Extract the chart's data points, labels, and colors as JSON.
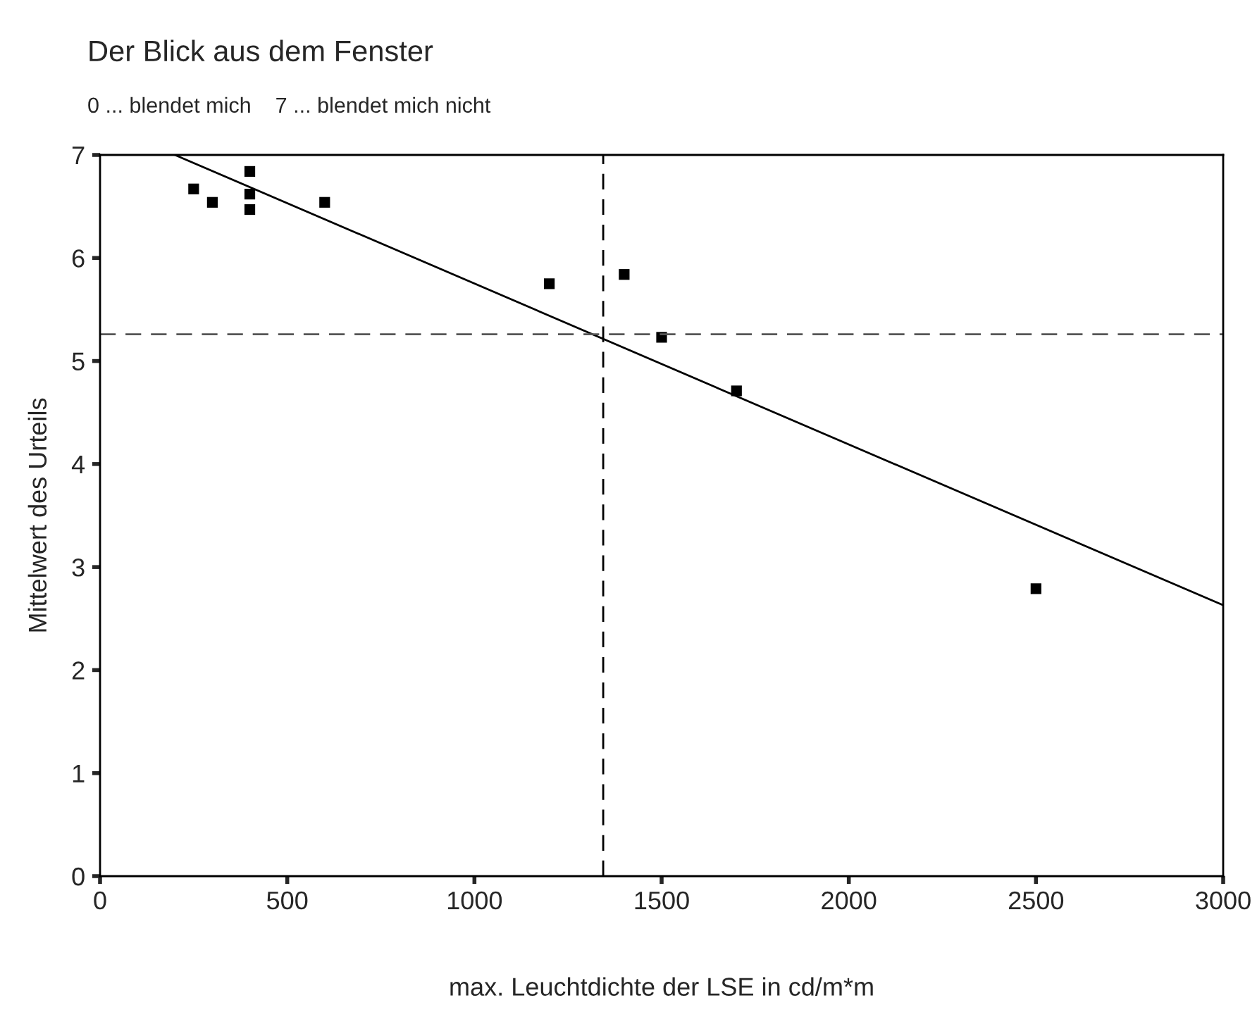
{
  "chart_data": {
    "type": "scatter",
    "title": "Der Blick aus dem Fenster",
    "subtitle": "0 ... blendet mich    7 ... blendet mich nicht",
    "xlabel": "max. Leuchtdichte der LSE in cd/m*m",
    "ylabel": "Mittelwert des Urteils",
    "series": [
      {
        "color": "#000000",
        "marker": "square",
        "x": [
          250,
          300,
          400,
          400,
          400,
          600,
          1200,
          1400,
          1500,
          1700,
          2500
        ],
        "values": [
          6.67,
          6.54,
          6.84,
          6.62,
          6.47,
          6.54,
          5.75,
          5.84,
          5.23,
          4.71,
          2.79
        ]
      },
      {
        "type": "line",
        "color": "#000000",
        "line_style": "solid",
        "x": [
          200,
          3000
        ],
        "values": [
          7.0,
          2.63
        ]
      }
    ],
    "ref_lines": [
      {
        "axis": "y",
        "value": 5.26,
        "color": "#555555",
        "line_style": "dashed"
      },
      {
        "axis": "x",
        "value": 1344,
        "color": "#000000",
        "line_style": "dashed"
      }
    ],
    "xlim": [
      0,
      3000
    ],
    "ylim": [
      0,
      7
    ],
    "xticks": [
      0,
      500,
      1000,
      1500,
      2000,
      2500,
      3000
    ],
    "yticks": [
      0,
      1,
      2,
      3,
      4,
      5,
      6,
      7
    ],
    "grid": false,
    "legend": false
  }
}
